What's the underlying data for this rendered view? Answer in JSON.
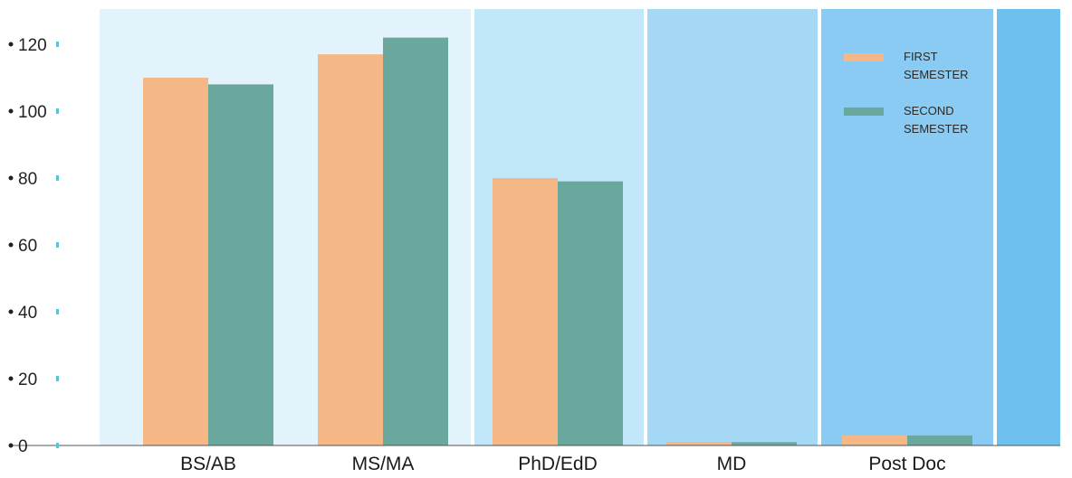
{
  "chart_data": {
    "type": "bar",
    "title": "",
    "xlabel": "",
    "ylabel": "",
    "ylim": [
      0,
      125
    ],
    "yticks": [
      0,
      20,
      40,
      60,
      80,
      100,
      120
    ],
    "ytick_labels": [
      "0",
      "20",
      "40",
      "60",
      "80",
      "100",
      "120"
    ],
    "grid": false,
    "legend_position": "top-right",
    "categories": [
      "BS/AB",
      "MS/MA",
      "PhD/EdD",
      "MD",
      "Post Doc"
    ],
    "series": [
      {
        "name": "FIRST SEMESTER",
        "name_lines": [
          "FIRST",
          "SEMESTER"
        ],
        "color": "#f4b785",
        "values": [
          110,
          117,
          80,
          1,
          3
        ]
      },
      {
        "name": "SECOND SEMESTER",
        "name_lines": [
          "SECOND",
          "SEMESTER"
        ],
        "color": "#6aa89d",
        "values": [
          108,
          122,
          79,
          1,
          3
        ]
      }
    ],
    "background_colors": [
      "#ffffff",
      "#e3f3fb",
      "#c2e7f8",
      "#a5d8f4",
      "#89cbf2",
      "#6ec0ef"
    ]
  }
}
